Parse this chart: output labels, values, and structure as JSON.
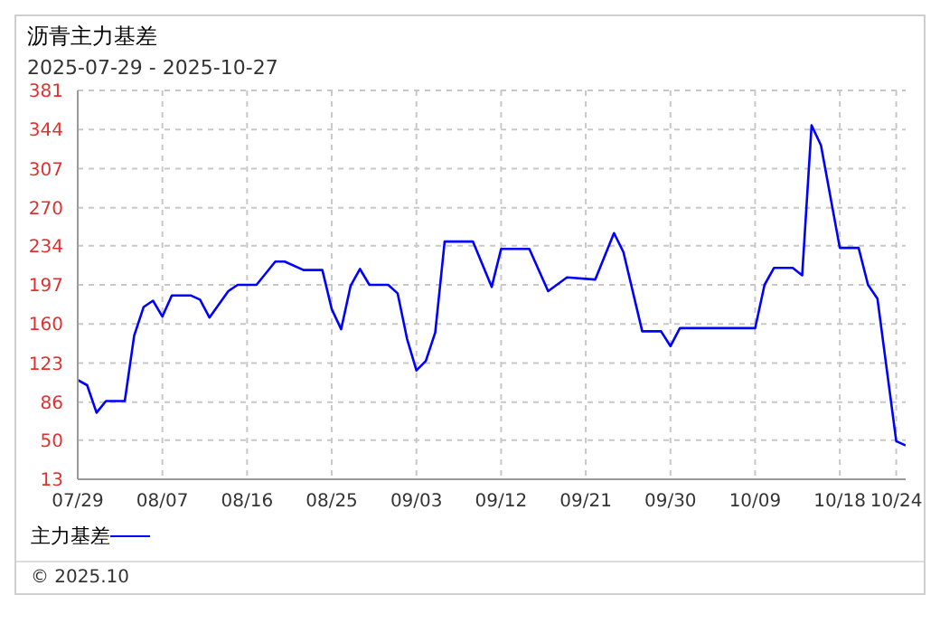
{
  "chart_data": {
    "type": "line",
    "title": "沥青主力基差",
    "subtitle": "2025-07-29 - 2025-10-27",
    "x": [
      "2025-07-29",
      "2025-07-30",
      "2025-07-31",
      "2025-08-01",
      "2025-08-03",
      "2025-08-04",
      "2025-08-05",
      "2025-08-06",
      "2025-08-07",
      "2025-08-08",
      "2025-08-10",
      "2025-08-11",
      "2025-08-12",
      "2025-08-14",
      "2025-08-15",
      "2025-08-17",
      "2025-08-19",
      "2025-08-20",
      "2025-08-22",
      "2025-08-24",
      "2025-08-25",
      "2025-08-26",
      "2025-08-27",
      "2025-08-28",
      "2025-08-29",
      "2025-08-31",
      "2025-09-01",
      "2025-09-02",
      "2025-09-03",
      "2025-09-04",
      "2025-09-05",
      "2025-09-06",
      "2025-09-09",
      "2025-09-11",
      "2025-09-12",
      "2025-09-15",
      "2025-09-17",
      "2025-09-19",
      "2025-09-22",
      "2025-09-24",
      "2025-09-25",
      "2025-09-27",
      "2025-09-29",
      "2025-09-30",
      "2025-10-01",
      "2025-10-09",
      "2025-10-10",
      "2025-10-11",
      "2025-10-13",
      "2025-10-14",
      "2025-10-15",
      "2025-10-16",
      "2025-10-18",
      "2025-10-20",
      "2025-10-21",
      "2025-10-22",
      "2025-10-24",
      "2025-10-25"
    ],
    "series": [
      {
        "name": "主力基差",
        "color": "#0000ff",
        "values": [
          107,
          102,
          76,
          87,
          87,
          149,
          176,
          182,
          167,
          187,
          187,
          183,
          166,
          191,
          197,
          197,
          219,
          219,
          211,
          211,
          174,
          155,
          196,
          212,
          197,
          197,
          189,
          146,
          116,
          125,
          152,
          238,
          238,
          195,
          231,
          231,
          191,
          204,
          202,
          246,
          228,
          153,
          153,
          139,
          156,
          156,
          197,
          213,
          213,
          206,
          348,
          329,
          232,
          232,
          197,
          184,
          49,
          45
        ]
      }
    ],
    "xlim": [
      "2025-07-29",
      "2025-10-25"
    ],
    "xticks": [
      {
        "value": "2025-07-29",
        "label": "07/29"
      },
      {
        "value": "2025-08-07",
        "label": "08/07"
      },
      {
        "value": "2025-08-16",
        "label": "08/16"
      },
      {
        "value": "2025-08-25",
        "label": "08/25"
      },
      {
        "value": "2025-09-03",
        "label": "09/03"
      },
      {
        "value": "2025-09-12",
        "label": "09/12"
      },
      {
        "value": "2025-09-21",
        "label": "09/21"
      },
      {
        "value": "2025-09-30",
        "label": "09/30"
      },
      {
        "value": "2025-10-09",
        "label": "10/09"
      },
      {
        "value": "2025-10-18",
        "label": "10/18"
      },
      {
        "value": "2025-10-24",
        "label": "10/24"
      }
    ],
    "ylim": [
      13,
      381
    ],
    "yticks": [
      13,
      50,
      86,
      123,
      160,
      197,
      234,
      270,
      307,
      344,
      381
    ],
    "grid": true,
    "legend": "bottom left",
    "marker": "none",
    "line_style": "solid",
    "annotations": [
      "© 2025.10"
    ]
  }
}
